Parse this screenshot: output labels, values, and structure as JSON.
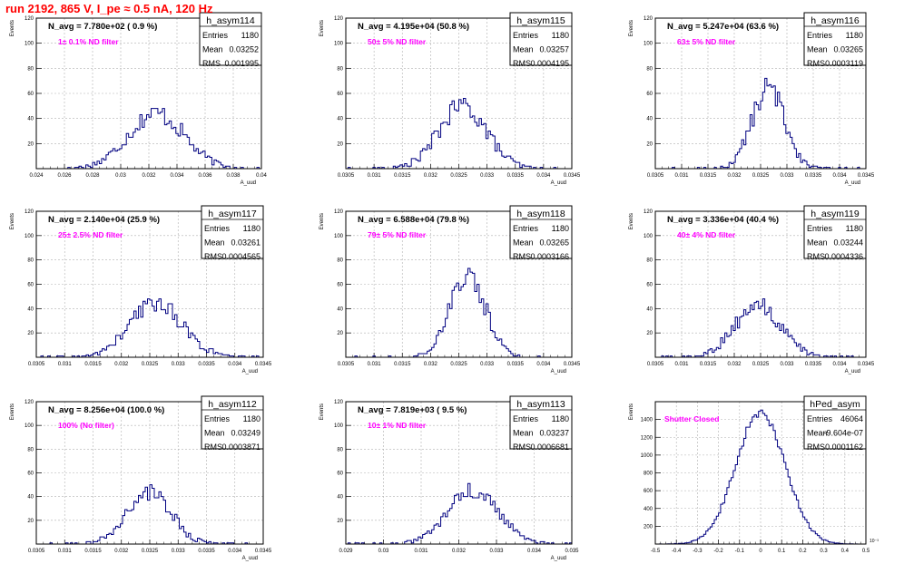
{
  "run_title": "run 2192,   865 V, I_pe ≈ 0.5 nA, 120 Hz",
  "colors": {
    "histogram": "#000080",
    "annotation": "#ff00ff",
    "title": "#ff0000",
    "grid": "#b0b0b0"
  },
  "chart_data": [
    {
      "type": "histogram",
      "name": "h_asym114",
      "nbar_text": "N_avg = 7.780e+02 ( 0.9 %)",
      "filter_text": "1± 0.1% ND filter",
      "stats": [
        [
          "Entries",
          "1180"
        ],
        [
          "Mean",
          "0.03252"
        ],
        [
          "RMS",
          "0.001995"
        ]
      ],
      "ylabel": "Events",
      "xlabel": "A_uud",
      "xlim": [
        0.024,
        0.04
      ],
      "ylim": [
        0,
        120
      ],
      "xticks": [
        "0.024",
        "0.026",
        "0.028",
        "0.03",
        "0.032",
        "0.034",
        "0.036",
        "0.038",
        "0.04"
      ],
      "yticks": [
        "20",
        "40",
        "60",
        "80",
        "100",
        "120"
      ],
      "mean": 0.03252,
      "rms": 0.001995,
      "peak": 44,
      "grid": true
    },
    {
      "type": "histogram",
      "name": "h_asym115",
      "nbar_text": "N_avg = 4.195e+04 (50.8 %)",
      "filter_text": "50± 5% ND filter",
      "stats": [
        [
          "Entries",
          "1180"
        ],
        [
          "Mean",
          "0.03257"
        ],
        [
          "RMS",
          "0.0004195"
        ]
      ],
      "ylabel": "Events",
      "xlabel": "A_uud",
      "xlim": [
        0.0305,
        0.0345
      ],
      "ylim": [
        0,
        120
      ],
      "xticks": [
        "0.0305",
        "0.031",
        "0.0315",
        "0.032",
        "0.0325",
        "0.033",
        "0.0335",
        "0.034",
        "0.0345"
      ],
      "yticks": [
        "20",
        "40",
        "60",
        "80",
        "100",
        "120"
      ],
      "mean": 0.03257,
      "rms": 0.0004195,
      "peak": 50,
      "grid": true
    },
    {
      "type": "histogram",
      "name": "h_asym116",
      "nbar_text": "N_avg = 5.247e+04 (63.6 %)",
      "filter_text": "63± 5% ND filter",
      "stats": [
        [
          "Entries",
          "1180"
        ],
        [
          "Mean",
          "0.03265"
        ],
        [
          "RMS",
          "0.0003119"
        ]
      ],
      "ylabel": "Events",
      "xlabel": "A_uud",
      "xlim": [
        0.0305,
        0.0345
      ],
      "ylim": [
        0,
        120
      ],
      "xticks": [
        "0.0305",
        "0.031",
        "0.0315",
        "0.032",
        "0.0325",
        "0.033",
        "0.0335",
        "0.034",
        "0.0345"
      ],
      "yticks": [
        "20",
        "40",
        "60",
        "80",
        "100",
        "120"
      ],
      "mean": 0.03265,
      "rms": 0.0003119,
      "peak": 64,
      "grid": true
    },
    {
      "type": "histogram",
      "name": "h_asym117",
      "nbar_text": "N_avg = 2.140e+04 (25.9 %)",
      "filter_text": "25± 2.5% ND filter",
      "stats": [
        [
          "Entries",
          "1180"
        ],
        [
          "Mean",
          "0.03261"
        ],
        [
          "RMS",
          "0.0004565"
        ]
      ],
      "ylabel": "Events",
      "xlabel": "A_uud",
      "xlim": [
        0.0305,
        0.0345
      ],
      "ylim": [
        0,
        120
      ],
      "xticks": [
        "0.0305",
        "0.031",
        "0.0315",
        "0.032",
        "0.0325",
        "0.033",
        "0.0335",
        "0.034",
        "0.0345"
      ],
      "yticks": [
        "20",
        "40",
        "60",
        "80",
        "100",
        "120"
      ],
      "mean": 0.03261,
      "rms": 0.0004565,
      "peak": 45,
      "grid": true
    },
    {
      "type": "histogram",
      "name": "h_asym118",
      "nbar_text": "N_avg = 6.588e+04 (79.8 %)",
      "filter_text": "79± 5% ND filter",
      "stats": [
        [
          "Entries",
          "1180"
        ],
        [
          "Mean",
          "0.03265"
        ],
        [
          "RMS",
          "0.0003166"
        ]
      ],
      "ylabel": "Events",
      "xlabel": "A_uud",
      "xlim": [
        0.0305,
        0.0345
      ],
      "ylim": [
        0,
        120
      ],
      "xticks": [
        "0.0305",
        "0.031",
        "0.0315",
        "0.032",
        "0.0325",
        "0.033",
        "0.0335",
        "0.034",
        "0.0345"
      ],
      "yticks": [
        "20",
        "40",
        "60",
        "80",
        "100",
        "120"
      ],
      "mean": 0.03265,
      "rms": 0.0003166,
      "peak": 68,
      "grid": true
    },
    {
      "type": "histogram",
      "name": "h_asym119",
      "nbar_text": "N_avg = 3.336e+04 (40.4 %)",
      "filter_text": "40± 4% ND filter",
      "stats": [
        [
          "Entries",
          "1180"
        ],
        [
          "Mean",
          "0.03244"
        ],
        [
          "RMS",
          "0.0004336"
        ]
      ],
      "ylabel": "Events",
      "xlabel": "A_uud",
      "xlim": [
        0.0305,
        0.0345
      ],
      "ylim": [
        0,
        120
      ],
      "xticks": [
        "0.0305",
        "0.031",
        "0.0315",
        "0.032",
        "0.0325",
        "0.033",
        "0.0335",
        "0.034",
        "0.0345"
      ],
      "yticks": [
        "20",
        "40",
        "60",
        "80",
        "100",
        "120"
      ],
      "mean": 0.03244,
      "rms": 0.0004336,
      "peak": 42,
      "grid": true
    },
    {
      "type": "histogram",
      "name": "h_asym112",
      "nbar_text": "N_avg = 8.256e+04 (100.0 %)",
      "filter_text": "100% (No filter)",
      "stats": [
        [
          "Entries",
          "1180"
        ],
        [
          "Mean",
          "0.03249"
        ],
        [
          "RMS",
          "0.0003871"
        ]
      ],
      "ylabel": "Events",
      "xlabel": "A_uud",
      "xlim": [
        0.0305,
        0.0345
      ],
      "ylim": [
        0,
        120
      ],
      "xticks": [
        "0.0305",
        "0.031",
        "0.0315",
        "0.032",
        "0.0325",
        "0.033",
        "0.0335",
        "0.034",
        "0.0345"
      ],
      "yticks": [
        "20",
        "40",
        "60",
        "80",
        "100",
        "120"
      ],
      "mean": 0.03249,
      "rms": 0.0003871,
      "peak": 43,
      "grid": true
    },
    {
      "type": "histogram",
      "name": "h_asym113",
      "nbar_text": "N_avg = 7.819e+03 ( 9.5 %)",
      "filter_text": "10± 1% ND filter",
      "stats": [
        [
          "Entries",
          "1180"
        ],
        [
          "Mean",
          "0.03237"
        ],
        [
          "RMS",
          "0.0006681"
        ]
      ],
      "ylabel": "Events",
      "xlabel": "A_uud",
      "xlim": [
        0.029,
        0.035
      ],
      "ylim": [
        0,
        120
      ],
      "xticks": [
        "0.029",
        "0.03",
        "0.031",
        "0.032",
        "0.033",
        "0.034",
        "0.035"
      ],
      "yticks": [
        "20",
        "40",
        "60",
        "80",
        "100",
        "120"
      ],
      "mean": 0.03237,
      "rms": 0.0006681,
      "peak": 44,
      "grid": true
    },
    {
      "type": "histogram",
      "name": "hPed_asym",
      "nbar_text": "",
      "filter_text": "Shutter Closed",
      "stats": [
        [
          "Entries",
          "46064"
        ],
        [
          "Mean",
          "-9.604e-07"
        ],
        [
          "RMS",
          "0.0001162"
        ]
      ],
      "ylabel": "Events",
      "xlabel": "",
      "xlim": [
        -0.5,
        0.5
      ],
      "ylim": [
        0,
        1600
      ],
      "xticks": [
        "-0.5",
        "-0.4",
        "-0.3",
        "-0.2",
        "-0.1",
        "0",
        "0.1",
        "0.2",
        "0.3",
        "0.4",
        "0.5"
      ],
      "yticks": [
        "200",
        "400",
        "600",
        "800",
        "1000",
        "1200",
        "1400"
      ],
      "xexp": "10⁻³",
      "mean": -0.00096,
      "rms": 0.1162,
      "peak": 1480,
      "grid": true
    }
  ]
}
